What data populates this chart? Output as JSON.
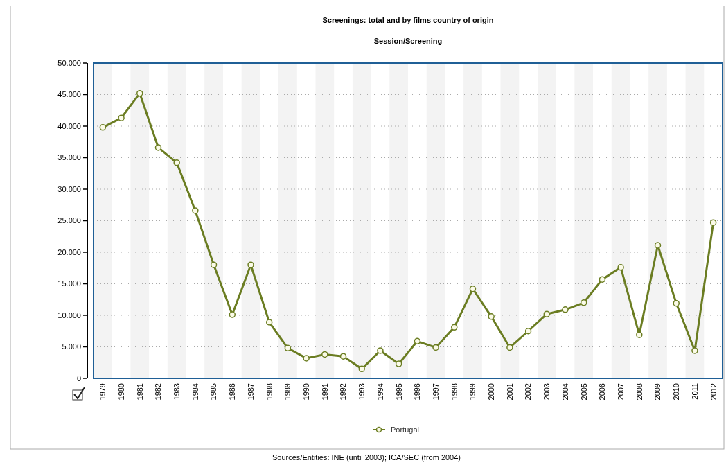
{
  "chart_data": {
    "type": "line",
    "title": "Screenings: total and by films country of origin",
    "subtitle": "Session/Screening",
    "categories": [
      "1979",
      "1980",
      "1981",
      "1982",
      "1983",
      "1984",
      "1985",
      "1986",
      "1987",
      "1988",
      "1989",
      "1990",
      "1991",
      "1992",
      "1993",
      "1994",
      "1995",
      "1996",
      "1997",
      "1998",
      "1999",
      "2000",
      "2001",
      "2002",
      "2003",
      "2004",
      "2005",
      "2006",
      "2007",
      "2008",
      "2009",
      "2010",
      "2011",
      "2012"
    ],
    "series": [
      {
        "name": "Portugal",
        "color": "#6b7d22",
        "values": [
          39800,
          41300,
          45200,
          36600,
          34200,
          26600,
          18000,
          10100,
          18000,
          8900,
          4800,
          3200,
          3800,
          3500,
          1500,
          4400,
          2300,
          5900,
          4900,
          8100,
          14200,
          9800,
          4900,
          7500,
          10200,
          10900,
          12000,
          15700,
          17600,
          6900,
          21100,
          11900,
          4400,
          24700
        ]
      }
    ],
    "ylim": [
      0,
      50000
    ],
    "yticks": [
      {
        "value": 0,
        "label": "0"
      },
      {
        "value": 5000,
        "label": "5.000"
      },
      {
        "value": 10000,
        "label": "10.000"
      },
      {
        "value": 15000,
        "label": "15.000"
      },
      {
        "value": 20000,
        "label": "20.000"
      },
      {
        "value": 25000,
        "label": "25.000"
      },
      {
        "value": 30000,
        "label": "30.000"
      },
      {
        "value": 35000,
        "label": "35.000"
      },
      {
        "value": 40000,
        "label": "40.000"
      },
      {
        "value": 45000,
        "label": "45.000"
      },
      {
        "value": 50000,
        "label": "50.000"
      }
    ],
    "grid": "y",
    "legend": "bottom",
    "marker": "circle",
    "line_style": "solid",
    "annotations": [
      "Sources/Entities: INE (until 2003); ICA/SEC (from 2004)"
    ]
  }
}
